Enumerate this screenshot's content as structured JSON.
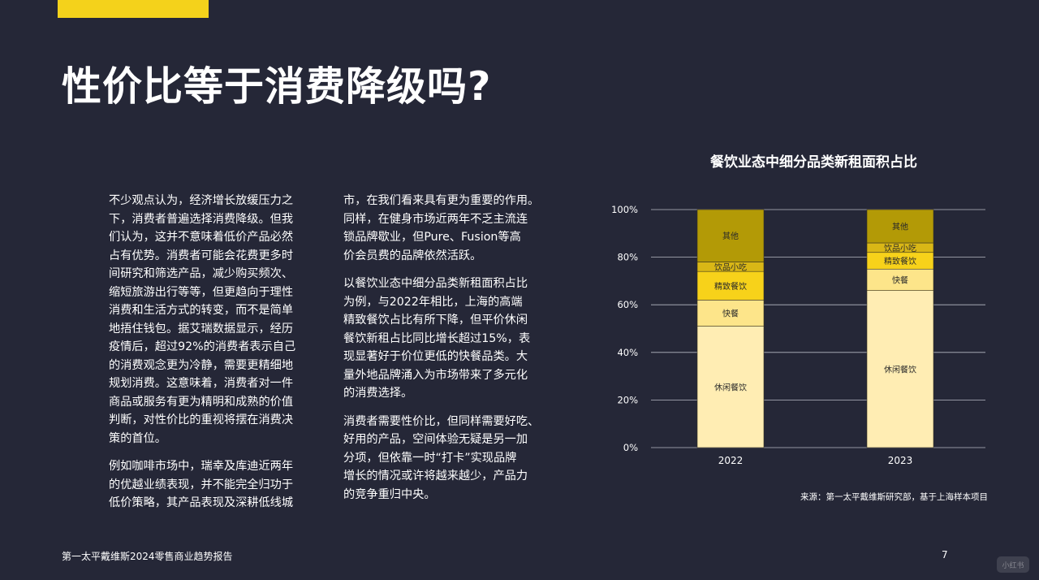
{
  "page": {
    "title": "性价比等于消费降级吗?",
    "footer": "第一太平戴维斯2024零售商业趋势报告",
    "page_number": "7",
    "watermark": "小红书",
    "accent_color": "#f4d21b",
    "background_color": "#252737"
  },
  "text": {
    "col1_p1": "不少观点认为，经济增长放缓压力之\n下，消费者普遍选择消费降级。但我\n们认为，这并不意味着低价产品必然\n占有优势。消费者可能会花费更多时\n间研究和筛选产品，减少购买频次、\n缩短旅游出行等等，但更趋向于理性\n消费和生活方式的转变，而不是简单\n地捂住钱包。据艾瑞数据显示，经历\n疫情后，超过92%的消费者表示自己\n的消费观念更为冷静，需要更精细地\n规划消费。这意味着，消费者对一件\n商品或服务有更为精明和成熟的价值\n判断，对性价比的重视将摆在消费决\n策的首位。",
    "col1_p2": "例如咖啡市场中，瑞幸及库迪近两年\n的优越业绩表现，并不能完全归功于\n低价策略，其产品表现及深耕低线城",
    "col2_p1": "市，在我们看来具有更为重要的作用。\n同样，在健身市场近两年不乏主流连\n锁品牌歇业，但Pure、Fusion等高\n价会员费的品牌依然活跃。",
    "col2_p2": "以餐饮业态中细分品类新租面积占比\n为例，与2022年相比，上海的高端\n精致餐饮占比有所下降，但平价休闲\n餐饮新租占比同比增长超过15%，表\n现显著好于价位更低的快餐品类。大\n量外地品牌涌入为市场带来了多元化\n的消费选择。",
    "col2_p3": "消费者需要性价比，但同样需要好吃、\n好用的产品，空间体验无疑是另一加\n分项，但依靠一时“打卡”实现品牌\n增长的情况或许将越来越少，产品力\n的竞争重归中央。"
  },
  "chart_data": {
    "type": "bar",
    "stacked": true,
    "title": "餐饮业态中细分品类新租面积占比",
    "categories": [
      "2022",
      "2023"
    ],
    "ylim": [
      0,
      100
    ],
    "yticks": [
      "0%",
      "20%",
      "40%",
      "60%",
      "80%",
      "100%"
    ],
    "grid": true,
    "series": [
      {
        "name": "休闲餐饮",
        "color": "#ffedb3",
        "values": [
          51,
          66
        ]
      },
      {
        "name": "快餐",
        "color": "#fde58a",
        "values": [
          11,
          9
        ]
      },
      {
        "name": "精致餐饮",
        "color": "#f7d21a",
        "values": [
          12,
          7
        ]
      },
      {
        "name": "饮品小吃",
        "color": "#d9b716",
        "values": [
          4,
          4
        ]
      },
      {
        "name": "其他",
        "color": "#b39a06",
        "values": [
          22,
          14
        ]
      }
    ],
    "source": "来源：第一太平戴维斯研究部，基于上海样本项目"
  }
}
